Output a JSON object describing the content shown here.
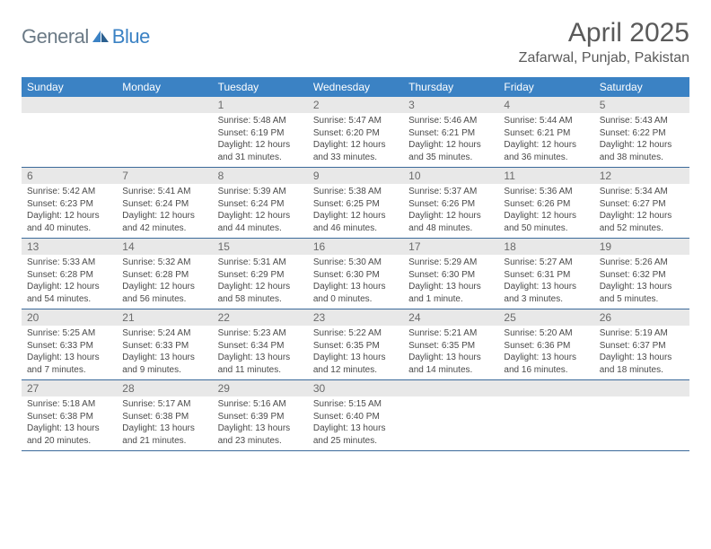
{
  "logo": {
    "general": "General",
    "blue": "Blue"
  },
  "title": "April 2025",
  "location": "Zafarwal, Punjab, Pakistan",
  "day_headers": [
    "Sunday",
    "Monday",
    "Tuesday",
    "Wednesday",
    "Thursday",
    "Friday",
    "Saturday"
  ],
  "colors": {
    "header_bg": "#3b82c4",
    "header_text": "#ffffff",
    "daynum_bg": "#e8e8e8",
    "daynum_text": "#6a6a6a",
    "row_border": "#3b6a9a",
    "body_text": "#4a4a4a",
    "title_text": "#5a5a5a"
  },
  "fonts": {
    "title_size": 30,
    "location_size": 16,
    "header_size": 12,
    "daynum_size": 12,
    "content_size": 10
  },
  "weeks": [
    [
      null,
      null,
      {
        "n": "1",
        "sr": "5:48 AM",
        "ss": "6:19 PM",
        "dl": "12 hours and 31 minutes."
      },
      {
        "n": "2",
        "sr": "5:47 AM",
        "ss": "6:20 PM",
        "dl": "12 hours and 33 minutes."
      },
      {
        "n": "3",
        "sr": "5:46 AM",
        "ss": "6:21 PM",
        "dl": "12 hours and 35 minutes."
      },
      {
        "n": "4",
        "sr": "5:44 AM",
        "ss": "6:21 PM",
        "dl": "12 hours and 36 minutes."
      },
      {
        "n": "5",
        "sr": "5:43 AM",
        "ss": "6:22 PM",
        "dl": "12 hours and 38 minutes."
      }
    ],
    [
      {
        "n": "6",
        "sr": "5:42 AM",
        "ss": "6:23 PM",
        "dl": "12 hours and 40 minutes."
      },
      {
        "n": "7",
        "sr": "5:41 AM",
        "ss": "6:24 PM",
        "dl": "12 hours and 42 minutes."
      },
      {
        "n": "8",
        "sr": "5:39 AM",
        "ss": "6:24 PM",
        "dl": "12 hours and 44 minutes."
      },
      {
        "n": "9",
        "sr": "5:38 AM",
        "ss": "6:25 PM",
        "dl": "12 hours and 46 minutes."
      },
      {
        "n": "10",
        "sr": "5:37 AM",
        "ss": "6:26 PM",
        "dl": "12 hours and 48 minutes."
      },
      {
        "n": "11",
        "sr": "5:36 AM",
        "ss": "6:26 PM",
        "dl": "12 hours and 50 minutes."
      },
      {
        "n": "12",
        "sr": "5:34 AM",
        "ss": "6:27 PM",
        "dl": "12 hours and 52 minutes."
      }
    ],
    [
      {
        "n": "13",
        "sr": "5:33 AM",
        "ss": "6:28 PM",
        "dl": "12 hours and 54 minutes."
      },
      {
        "n": "14",
        "sr": "5:32 AM",
        "ss": "6:28 PM",
        "dl": "12 hours and 56 minutes."
      },
      {
        "n": "15",
        "sr": "5:31 AM",
        "ss": "6:29 PM",
        "dl": "12 hours and 58 minutes."
      },
      {
        "n": "16",
        "sr": "5:30 AM",
        "ss": "6:30 PM",
        "dl": "13 hours and 0 minutes."
      },
      {
        "n": "17",
        "sr": "5:29 AM",
        "ss": "6:30 PM",
        "dl": "13 hours and 1 minute."
      },
      {
        "n": "18",
        "sr": "5:27 AM",
        "ss": "6:31 PM",
        "dl": "13 hours and 3 minutes."
      },
      {
        "n": "19",
        "sr": "5:26 AM",
        "ss": "6:32 PM",
        "dl": "13 hours and 5 minutes."
      }
    ],
    [
      {
        "n": "20",
        "sr": "5:25 AM",
        "ss": "6:33 PM",
        "dl": "13 hours and 7 minutes."
      },
      {
        "n": "21",
        "sr": "5:24 AM",
        "ss": "6:33 PM",
        "dl": "13 hours and 9 minutes."
      },
      {
        "n": "22",
        "sr": "5:23 AM",
        "ss": "6:34 PM",
        "dl": "13 hours and 11 minutes."
      },
      {
        "n": "23",
        "sr": "5:22 AM",
        "ss": "6:35 PM",
        "dl": "13 hours and 12 minutes."
      },
      {
        "n": "24",
        "sr": "5:21 AM",
        "ss": "6:35 PM",
        "dl": "13 hours and 14 minutes."
      },
      {
        "n": "25",
        "sr": "5:20 AM",
        "ss": "6:36 PM",
        "dl": "13 hours and 16 minutes."
      },
      {
        "n": "26",
        "sr": "5:19 AM",
        "ss": "6:37 PM",
        "dl": "13 hours and 18 minutes."
      }
    ],
    [
      {
        "n": "27",
        "sr": "5:18 AM",
        "ss": "6:38 PM",
        "dl": "13 hours and 20 minutes."
      },
      {
        "n": "28",
        "sr": "5:17 AM",
        "ss": "6:38 PM",
        "dl": "13 hours and 21 minutes."
      },
      {
        "n": "29",
        "sr": "5:16 AM",
        "ss": "6:39 PM",
        "dl": "13 hours and 23 minutes."
      },
      {
        "n": "30",
        "sr": "5:15 AM",
        "ss": "6:40 PM",
        "dl": "13 hours and 25 minutes."
      },
      null,
      null,
      null
    ]
  ]
}
